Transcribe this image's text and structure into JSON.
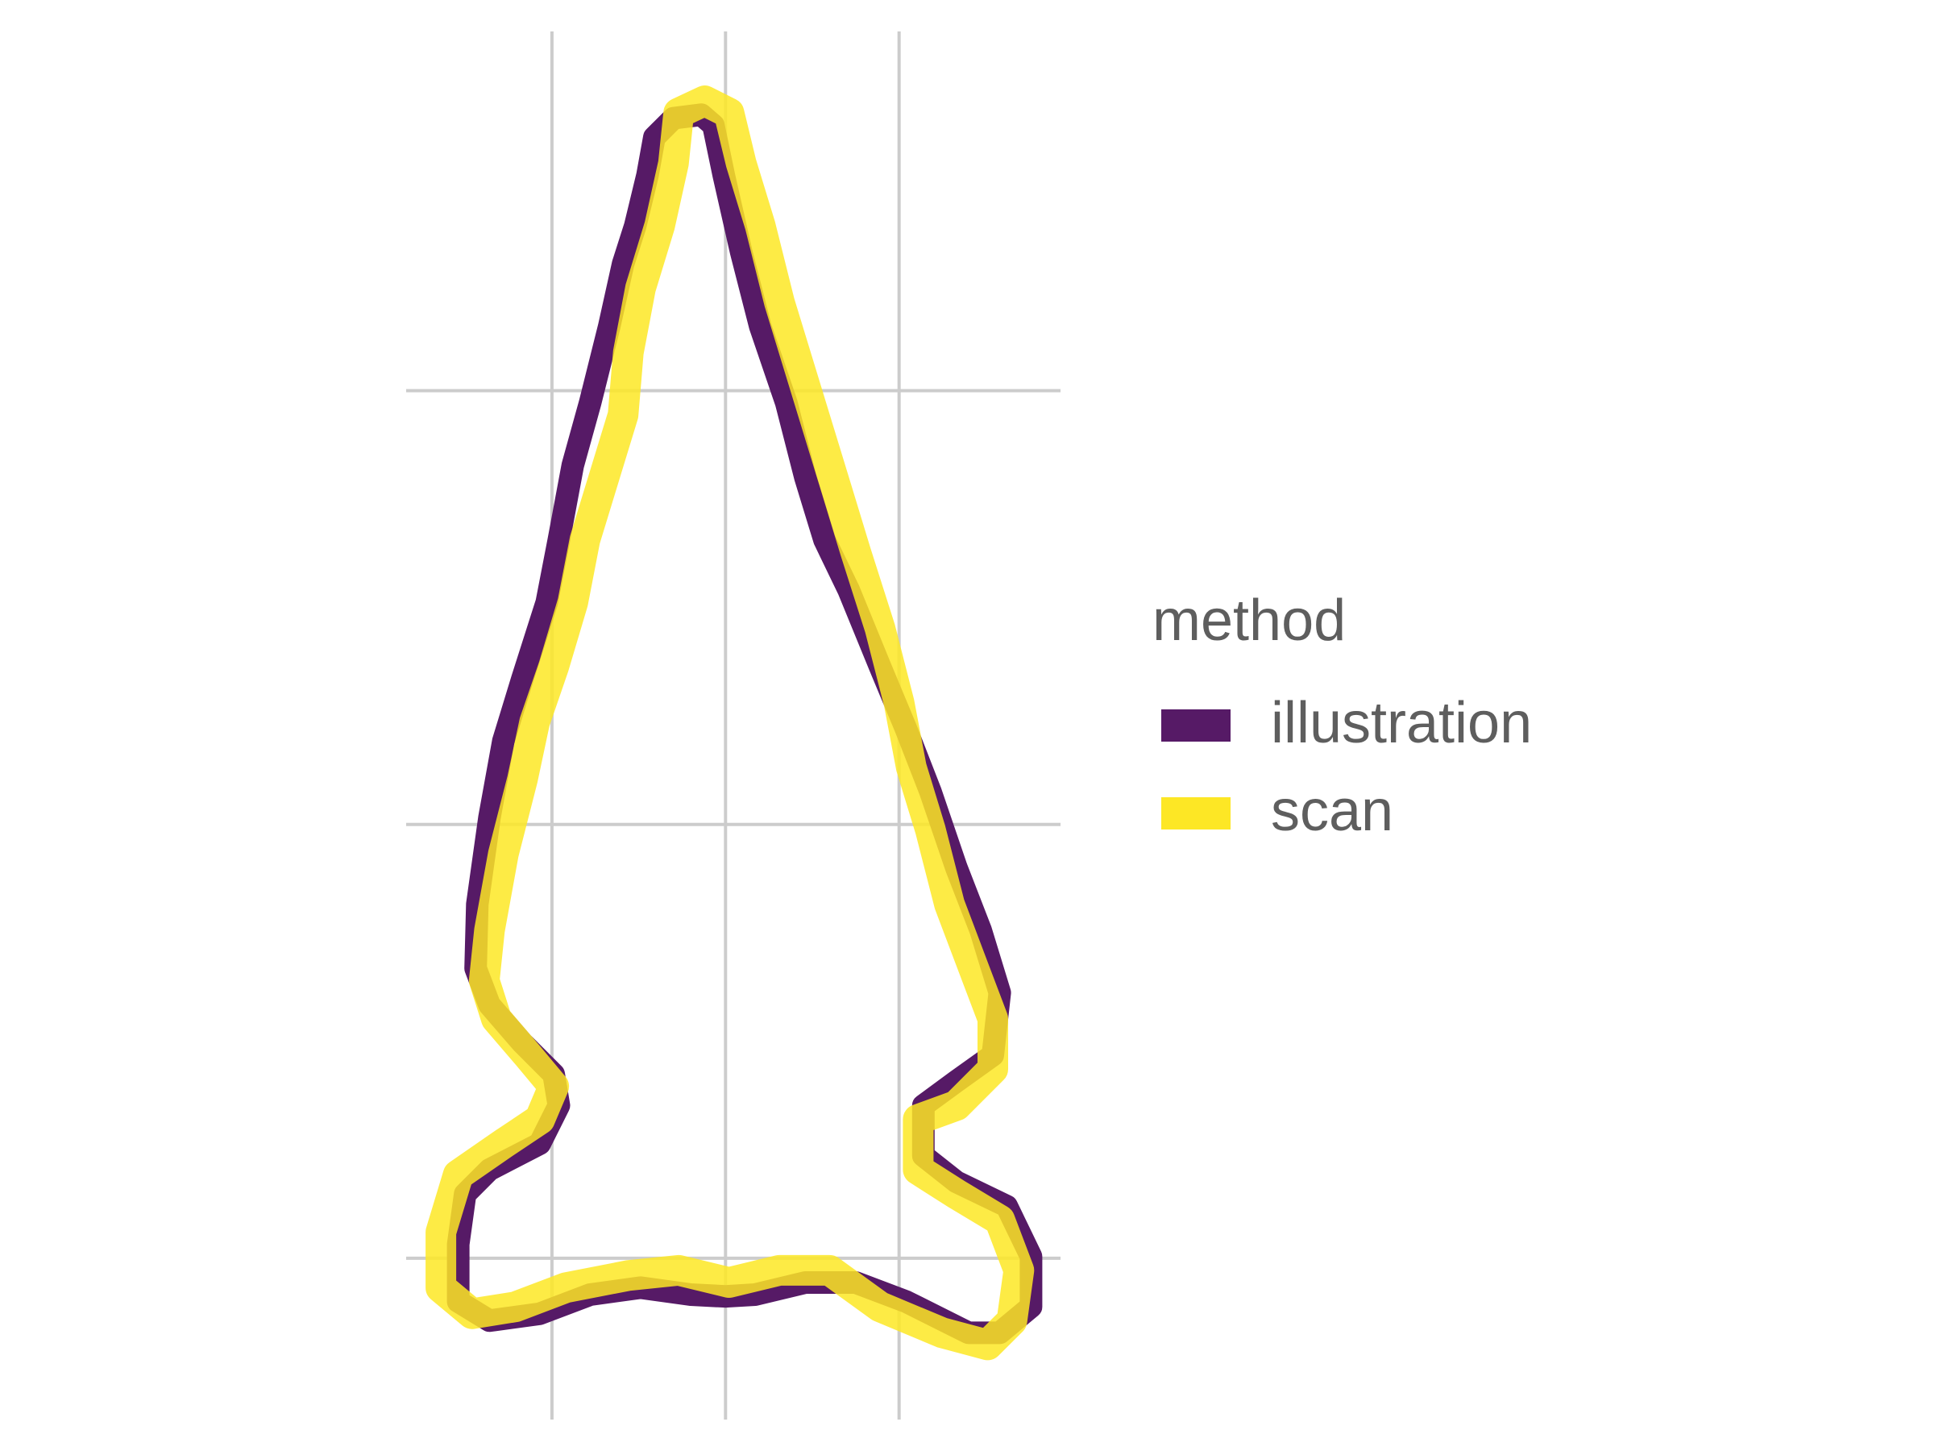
{
  "chart_data": {
    "type": "line",
    "legend_title": "method",
    "legend_position": "right",
    "grid": true,
    "xlim": [
      -1.84,
      1.93
    ],
    "ylim": [
      -0.93,
      7.07
    ],
    "xticks": [
      -1,
      0,
      1
    ],
    "yticks": [
      0,
      2.5,
      5
    ],
    "series": [
      {
        "name": "illustration",
        "color": "#561a66",
        "x": [
          -0.14,
          -0.07,
          -0.01,
          0.09,
          0.2,
          0.35,
          0.46,
          0.57,
          0.71,
          0.89,
          1.04,
          1.18,
          1.33,
          1.47,
          1.58,
          1.54,
          1.33,
          1.14,
          1.14,
          1.33,
          1.62,
          1.76,
          1.76,
          1.58,
          1.4,
          1.04,
          0.75,
          0.46,
          0.17,
          0.0,
          -0.2,
          -0.49,
          -0.78,
          -1.07,
          -1.36,
          -1.54,
          -1.54,
          -1.5,
          -1.36,
          -1.07,
          -0.96,
          -0.99,
          -1.17,
          -1.36,
          -1.44,
          -1.43,
          -1.36,
          -1.28,
          -1.17,
          -1.03,
          -0.96,
          -0.88,
          -0.78,
          -0.67,
          -0.59,
          -0.52,
          -0.45,
          -0.41,
          -0.3
        ],
        "values": [
          6.59,
          6.53,
          6.24,
          5.8,
          5.37,
          4.93,
          4.5,
          4.14,
          3.85,
          3.41,
          3.05,
          2.69,
          2.25,
          1.89,
          1.53,
          1.17,
          1.02,
          0.88,
          0.59,
          0.44,
          0.3,
          0.01,
          -0.28,
          -0.43,
          -0.43,
          -0.25,
          -0.14,
          -0.14,
          -0.21,
          -0.22,
          -0.21,
          -0.17,
          -0.21,
          -0.32,
          -0.36,
          -0.25,
          0.08,
          0.37,
          0.51,
          0.66,
          0.88,
          1.06,
          1.24,
          1.46,
          1.67,
          2.04,
          2.54,
          2.98,
          3.34,
          3.78,
          4.14,
          4.57,
          4.93,
          5.37,
          5.73,
          5.95,
          6.24,
          6.46,
          6.57
        ]
      },
      {
        "name": "scan",
        "color": "#fde725",
        "x": [
          -0.12,
          0.02,
          0.09,
          0.2,
          0.31,
          0.42,
          0.53,
          0.64,
          0.75,
          0.89,
          1.0,
          1.07,
          1.18,
          1.29,
          1.43,
          1.54,
          1.54,
          1.33,
          1.11,
          1.11,
          1.33,
          1.58,
          1.69,
          1.65,
          1.51,
          1.25,
          0.89,
          0.6,
          0.31,
          0.02,
          -0.27,
          -0.56,
          -0.92,
          -1.21,
          -1.46,
          -1.64,
          -1.64,
          -1.54,
          -1.28,
          -1.07,
          -0.99,
          -1.14,
          -1.32,
          -1.39,
          -1.36,
          -1.28,
          -1.17,
          -1.1,
          -0.99,
          -0.88,
          -0.81,
          -0.7,
          -0.59,
          -0.56,
          -0.49,
          -0.38,
          -0.3,
          -0.27
        ],
        "values": [
          6.67,
          6.6,
          6.31,
          5.95,
          5.51,
          5.15,
          4.79,
          4.43,
          4.07,
          3.63,
          3.2,
          2.83,
          2.47,
          2.04,
          1.67,
          1.38,
          1.09,
          0.88,
          0.8,
          0.51,
          0.37,
          0.22,
          -0.07,
          -0.36,
          -0.5,
          -0.43,
          -0.28,
          -0.07,
          -0.07,
          -0.14,
          -0.07,
          -0.1,
          -0.17,
          -0.28,
          -0.32,
          -0.17,
          0.15,
          0.48,
          0.66,
          0.8,
          0.99,
          1.17,
          1.38,
          1.6,
          1.89,
          2.33,
          2.76,
          3.09,
          3.41,
          3.78,
          4.14,
          4.5,
          4.86,
          5.22,
          5.59,
          5.95,
          6.31,
          6.6
        ]
      }
    ]
  }
}
